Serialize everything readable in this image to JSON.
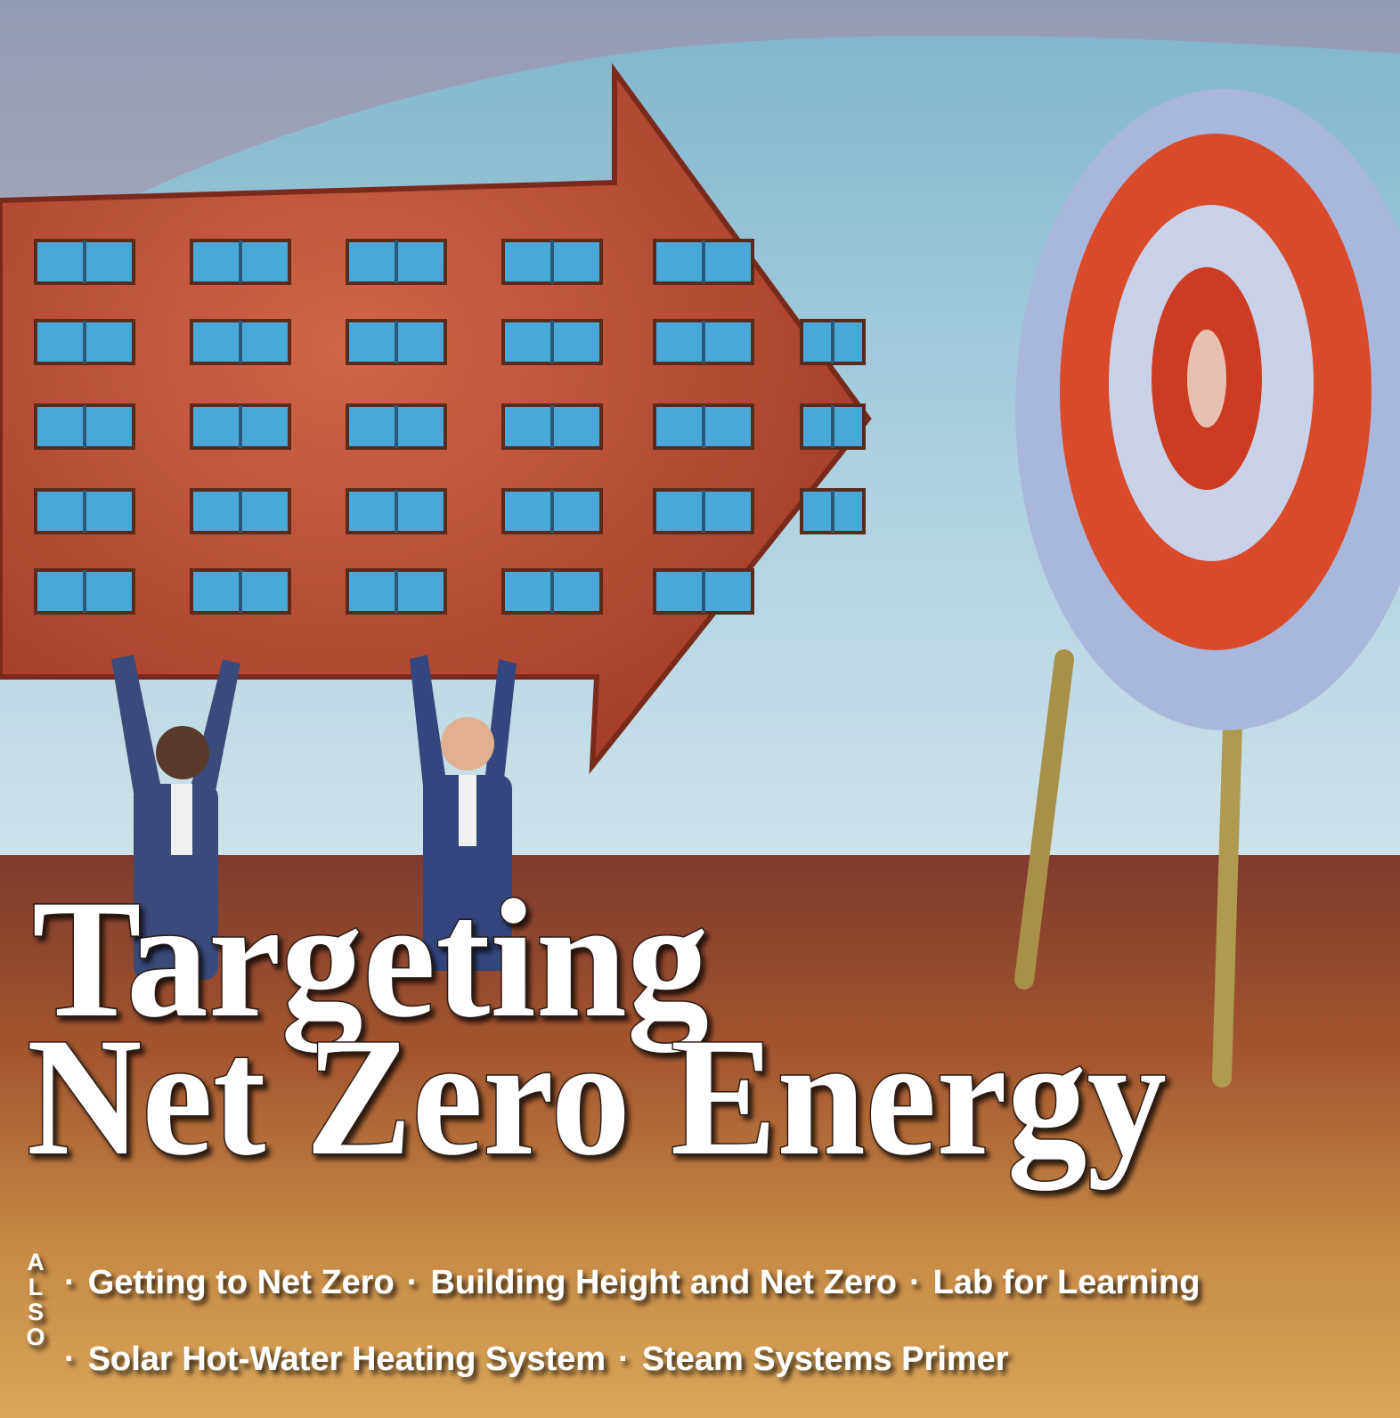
{
  "cover": {
    "headline": [
      "Targeting",
      "Net Zero Energy"
    ],
    "also_letters": [
      "A",
      "L",
      "S",
      "O"
    ],
    "separator": "·",
    "also_lines": [
      [
        "Getting to Net Zero",
        "Building Height and Net Zero",
        "Lab for Learning"
      ],
      [
        "Solar Hot-Water Heating System",
        "Steam Systems Primer"
      ]
    ]
  }
}
